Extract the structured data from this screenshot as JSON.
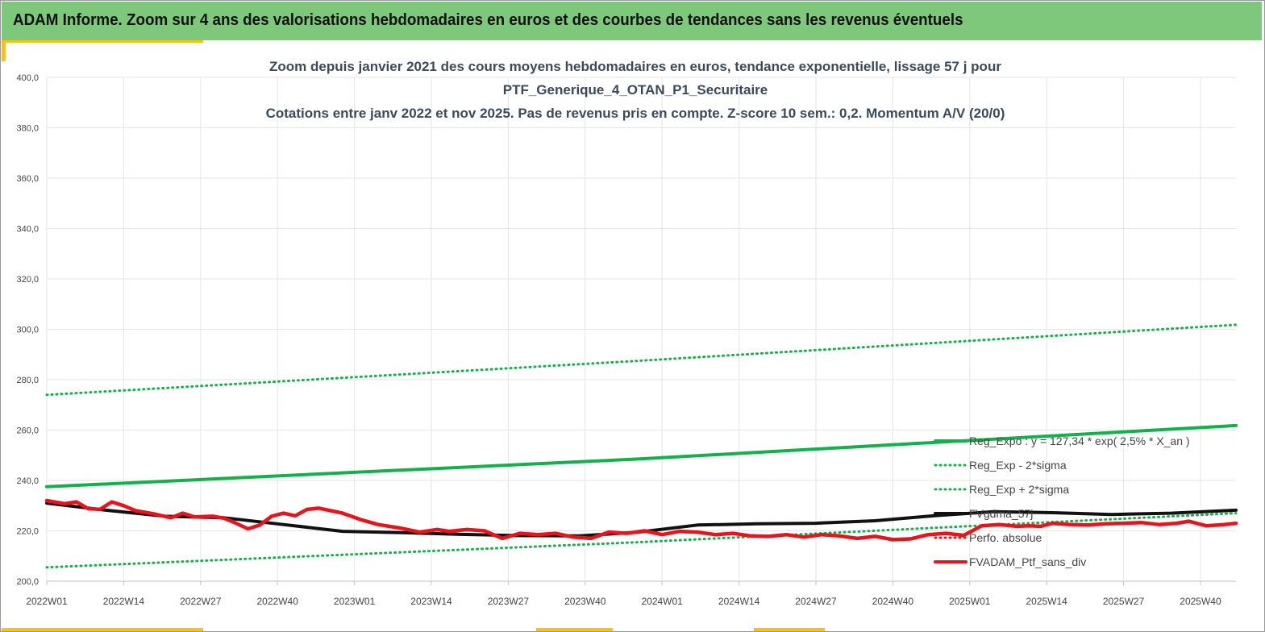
{
  "header": {
    "title": "ADAM Informe. Zoom sur 4 ans des valorisations hebdomadaires en euros et des courbes de tendances sans les revenus éventuels"
  },
  "colors": {
    "header_bg": "#7dc87a",
    "accent": "#f4c414",
    "trend": "#14b04a",
    "portfolio": "#e8141c",
    "smooth": "#111111"
  },
  "chart_data": {
    "type": "line",
    "title": [
      "Zoom depuis janvier 2021 des cours moyens hebdomadaires  en euros, tendance exponentielle, lissage 57 j pour",
      "PTF_Generique_4_OTAN_P1_Securitaire",
      "Cotations  entre janv 2022 et nov 2025. Pas de revenus pris en compte. Z-score 10 sem.: 0,2. Momentum  A/V (20/0)"
    ],
    "ylim": [
      200,
      400
    ],
    "y_ticks": [
      "400,0",
      "380,0",
      "360,0",
      "340,0",
      "320,0",
      "300,0",
      "280,0",
      "260,0",
      "240,0",
      "220,0",
      "200,0"
    ],
    "x_ticks": [
      "2022W01",
      "2022W14",
      "2022W27",
      "2022W40",
      "2023W01",
      "2023W14",
      "2023W27",
      "2023W40",
      "2024W01",
      "2024W14",
      "2024W27",
      "2024W40",
      "2025W01",
      "2025W14",
      "2025W27",
      "2025W40"
    ],
    "x_week_range": [
      0,
      201
    ],
    "grid": true,
    "legend_position": "right",
    "series": [
      {
        "name": "Reg_Expo : y = 127,34 * exp( 2,5% *  X_an )",
        "style": "solid-thick",
        "color": "#14b04a",
        "points": [
          [
            0,
            237.5
          ],
          [
            100,
            248.5
          ],
          [
            201,
            261.8
          ]
        ]
      },
      {
        "name": "Reg_Exp - 2*sigma",
        "style": "dotted",
        "color": "#14b04a",
        "points": [
          [
            0,
            205.5
          ],
          [
            100,
            215.5
          ],
          [
            201,
            227.0
          ]
        ]
      },
      {
        "name": "Reg_Exp + 2*sigma",
        "style": "dotted",
        "color": "#14b04a",
        "points": [
          [
            0,
            274.0
          ],
          [
            100,
            287.5
          ],
          [
            201,
            301.8
          ]
        ]
      },
      {
        "name": "FVgdma_57j",
        "style": "solid",
        "color": "#111111",
        "points": [
          [
            0,
            231.0
          ],
          [
            10,
            228.2
          ],
          [
            20,
            225.8
          ],
          [
            30,
            225.2
          ],
          [
            40,
            222.5
          ],
          [
            50,
            219.8
          ],
          [
            60,
            219.3
          ],
          [
            70,
            218.6
          ],
          [
            80,
            218.1
          ],
          [
            90,
            218.0
          ],
          [
            100,
            219.5
          ],
          [
            110,
            222.3
          ],
          [
            120,
            222.8
          ],
          [
            130,
            223.0
          ],
          [
            140,
            224.0
          ],
          [
            150,
            226.0
          ],
          [
            160,
            227.6
          ],
          [
            170,
            227.2
          ],
          [
            180,
            226.5
          ],
          [
            190,
            227.0
          ],
          [
            201,
            228.2
          ]
        ]
      },
      {
        "name": "Perfo. absolue",
        "style": "dotted",
        "color": "#e8141c",
        "points": []
      },
      {
        "name": "FVADAM_Ptf_sans_div",
        "style": "solid-thick",
        "color": "#e8141c",
        "points": [
          [
            0,
            232.0
          ],
          [
            3,
            230.8
          ],
          [
            5,
            231.5
          ],
          [
            7,
            228.8
          ],
          [
            9,
            228.5
          ],
          [
            11,
            231.5
          ],
          [
            13,
            230.0
          ],
          [
            15,
            228.0
          ],
          [
            18,
            226.8
          ],
          [
            21,
            225.2
          ],
          [
            23,
            227.0
          ],
          [
            25,
            225.5
          ],
          [
            28,
            225.8
          ],
          [
            30,
            225.0
          ],
          [
            32,
            223.0
          ],
          [
            34,
            220.8
          ],
          [
            36,
            222.3
          ],
          [
            38,
            225.8
          ],
          [
            40,
            227.0
          ],
          [
            42,
            226.0
          ],
          [
            44,
            228.5
          ],
          [
            46,
            229.0
          ],
          [
            48,
            228.0
          ],
          [
            50,
            227.0
          ],
          [
            53,
            224.5
          ],
          [
            56,
            222.5
          ],
          [
            60,
            221.0
          ],
          [
            63,
            219.5
          ],
          [
            66,
            220.5
          ],
          [
            68,
            219.8
          ],
          [
            71,
            220.5
          ],
          [
            74,
            220.0
          ],
          [
            77,
            217.0
          ],
          [
            80,
            219.0
          ],
          [
            83,
            218.5
          ],
          [
            86,
            219.0
          ],
          [
            89,
            217.5
          ],
          [
            92,
            217.0
          ],
          [
            95,
            219.5
          ],
          [
            98,
            219.0
          ],
          [
            101,
            220.0
          ],
          [
            104,
            218.5
          ],
          [
            107,
            219.8
          ],
          [
            110,
            219.5
          ],
          [
            113,
            218.5
          ],
          [
            116,
            219.0
          ],
          [
            119,
            218.0
          ],
          [
            122,
            217.8
          ],
          [
            125,
            218.5
          ],
          [
            128,
            217.5
          ],
          [
            131,
            218.5
          ],
          [
            134,
            218.0
          ],
          [
            137,
            217.0
          ],
          [
            140,
            217.8
          ],
          [
            143,
            216.5
          ],
          [
            146,
            216.8
          ],
          [
            149,
            218.5
          ],
          [
            152,
            219.0
          ],
          [
            155,
            218.2
          ],
          [
            158,
            222.0
          ],
          [
            161,
            222.5
          ],
          [
            164,
            221.8
          ],
          [
            166,
            222.0
          ],
          [
            168,
            221.8
          ],
          [
            170,
            223.0
          ],
          [
            173,
            222.5
          ],
          [
            176,
            222.3
          ],
          [
            179,
            222.8
          ],
          [
            182,
            223.0
          ],
          [
            185,
            223.3
          ],
          [
            188,
            222.5
          ],
          [
            191,
            223.0
          ],
          [
            193,
            223.8
          ],
          [
            196,
            222.0
          ],
          [
            199,
            222.5
          ],
          [
            201,
            223.0
          ]
        ]
      }
    ]
  }
}
